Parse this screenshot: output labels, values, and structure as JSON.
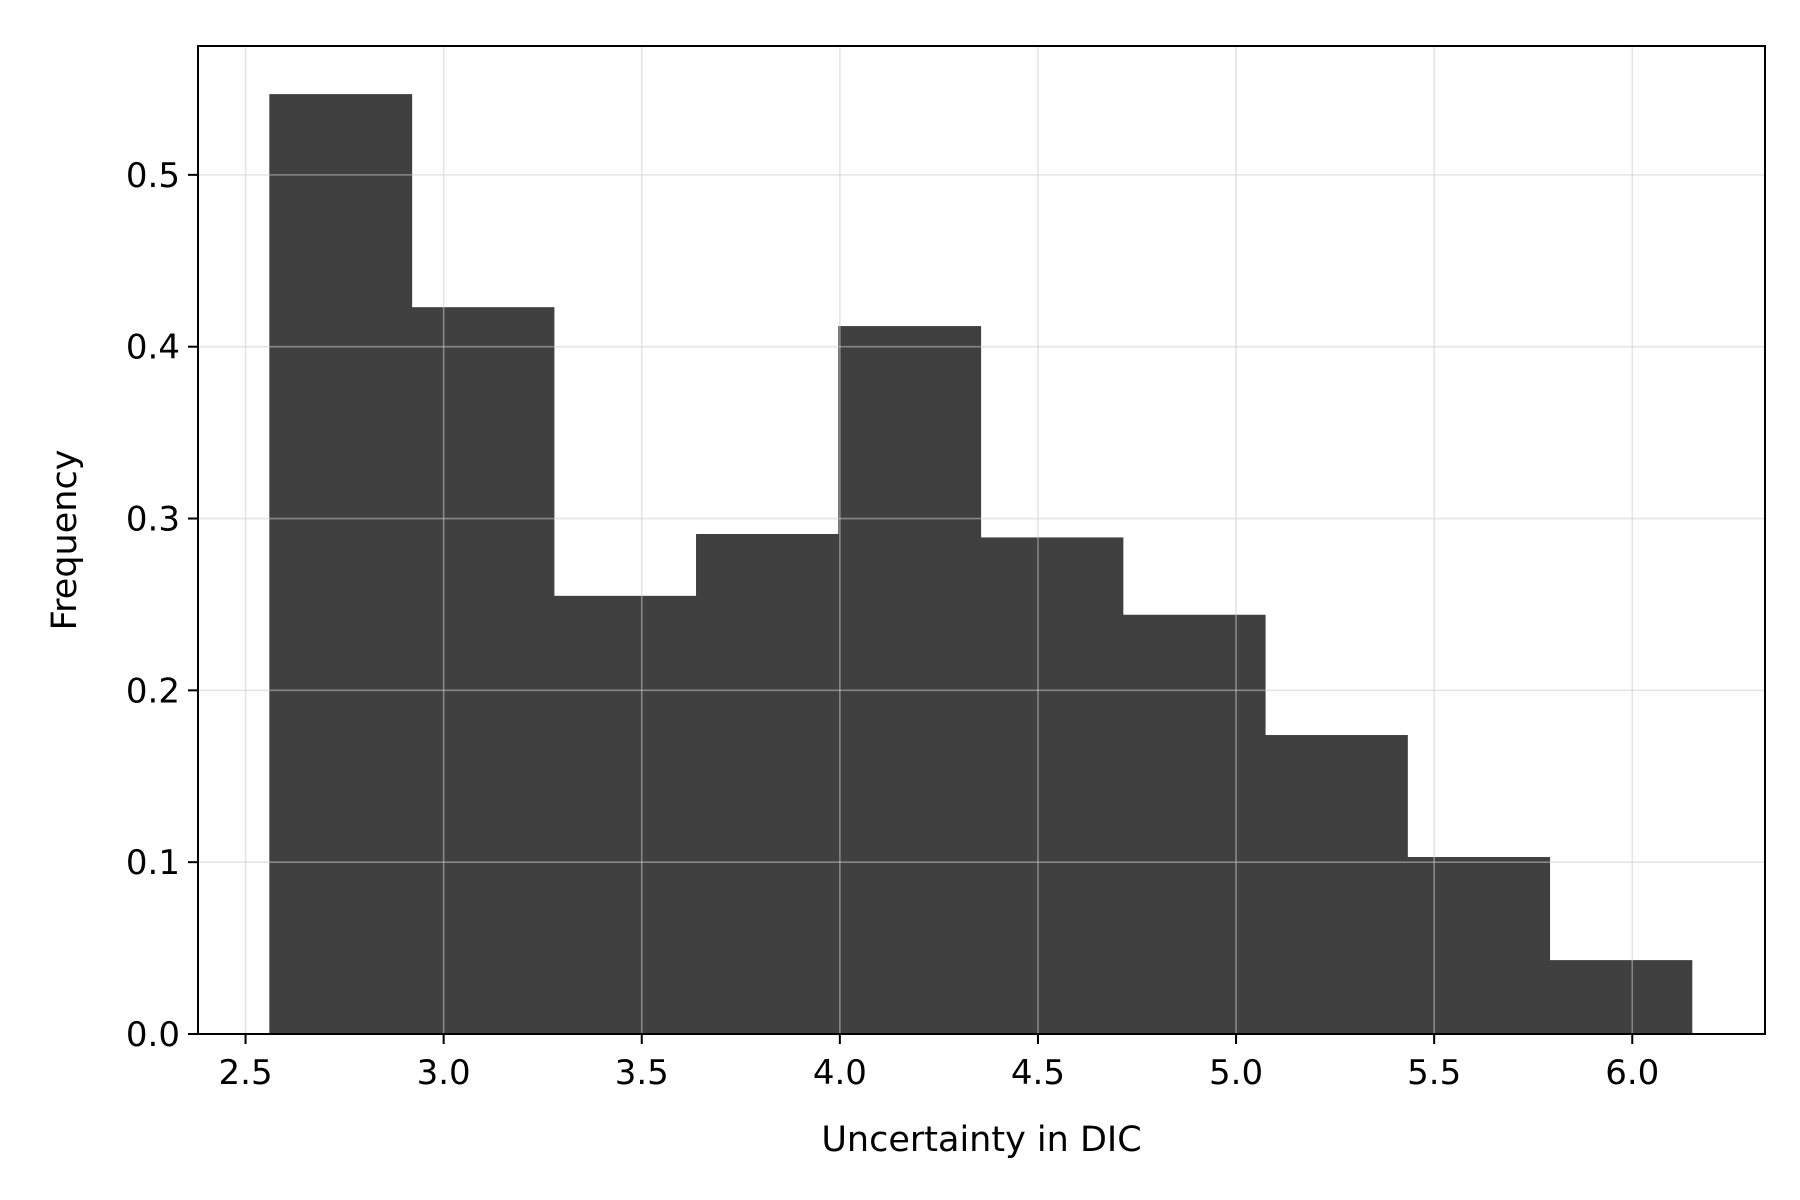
{
  "chart_data": {
    "type": "bar",
    "subtype": "histogram",
    "title": "",
    "xlabel": "Uncertainty in DIC",
    "ylabel": "Frequency",
    "bins": [
      {
        "x0": 2.56,
        "x1": 2.919,
        "value": 0.547
      },
      {
        "x0": 2.919,
        "x1": 3.278,
        "value": 0.423
      },
      {
        "x0": 3.278,
        "x1": 3.637,
        "value": 0.255
      },
      {
        "x0": 3.637,
        "x1": 3.996,
        "value": 0.291
      },
      {
        "x0": 3.996,
        "x1": 4.355,
        "value": 0.412
      },
      {
        "x0": 4.355,
        "x1": 4.714,
        "value": 0.289
      },
      {
        "x0": 4.714,
        "x1": 5.073,
        "value": 0.244
      },
      {
        "x0": 5.073,
        "x1": 5.432,
        "value": 0.174
      },
      {
        "x0": 5.432,
        "x1": 5.791,
        "value": 0.103
      },
      {
        "x0": 5.791,
        "x1": 6.15,
        "value": 0.043
      }
    ],
    "xlim": [
      2.38,
      6.335
    ],
    "ylim": [
      0,
      0.575
    ],
    "xticks": [
      2.5,
      3.0,
      3.5,
      4.0,
      4.5,
      5.0,
      5.5,
      6.0
    ],
    "xtick_labels": [
      "2.5",
      "3.0",
      "3.5",
      "4.0",
      "4.5",
      "5.0",
      "5.5",
      "6.0"
    ],
    "yticks": [
      0.0,
      0.1,
      0.2,
      0.3,
      0.4,
      0.5
    ],
    "ytick_labels": [
      "0.0",
      "0.1",
      "0.2",
      "0.3",
      "0.4",
      "0.5"
    ],
    "grid": true,
    "legend": "none",
    "bar_color": "#404040",
    "grid_color": "#cccccc"
  }
}
